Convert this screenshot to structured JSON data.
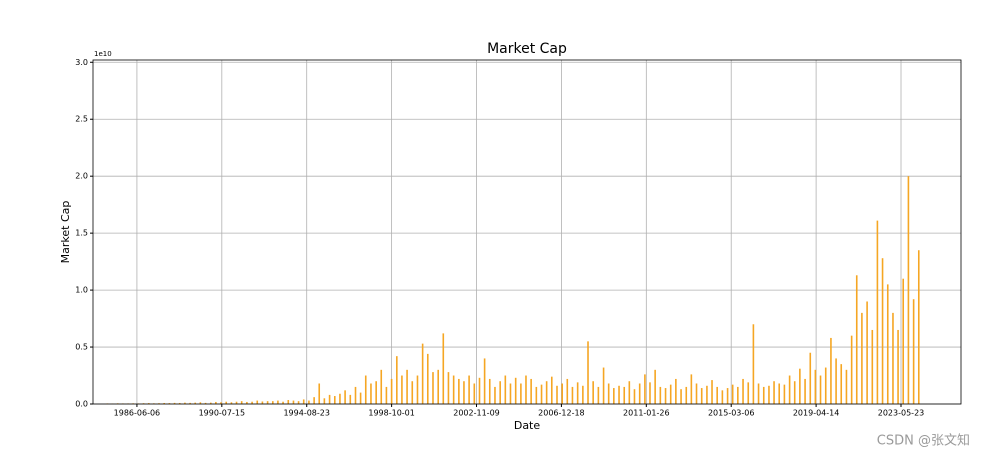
{
  "chart_data": {
    "type": "bar",
    "title": "Market Cap",
    "xlabel": "Date",
    "ylabel": "Market Cap",
    "y_offset_label": "1e10",
    "watermark": "CSDN @张文知",
    "color": "#f5a623",
    "grid": true,
    "xlim": [
      "1984-04-21",
      "2026-04-17"
    ],
    "ylim": [
      0,
      30200000000.0
    ],
    "xticks": [
      "1986-06-06",
      "1990-07-15",
      "1994-08-23",
      "1998-10-01",
      "2002-11-09",
      "2006-12-18",
      "2011-01-26",
      "2015-03-06",
      "2019-04-14",
      "2023-05-23"
    ],
    "yticks": [
      {
        "value": 0,
        "label": "0.0"
      },
      {
        "value": 5000000000.0,
        "label": "0.5"
      },
      {
        "value": 10000000000.0,
        "label": "1.0"
      },
      {
        "value": 15000000000.0,
        "label": "1.5"
      },
      {
        "value": 20000000000.0,
        "label": "2.0"
      },
      {
        "value": 25000000000.0,
        "label": "2.5"
      },
      {
        "value": 30000000000.0,
        "label": "3.0"
      }
    ],
    "x": [
      "1985-01-01",
      "1985-04-01",
      "1985-07-01",
      "1985-10-01",
      "1986-01-01",
      "1986-04-01",
      "1986-07-01",
      "1986-10-01",
      "1987-01-01",
      "1987-04-01",
      "1987-07-01",
      "1987-10-01",
      "1988-01-01",
      "1988-04-01",
      "1988-07-01",
      "1988-10-01",
      "1989-01-01",
      "1989-04-01",
      "1989-07-01",
      "1989-10-01",
      "1990-01-01",
      "1990-04-01",
      "1990-07-01",
      "1990-10-01",
      "1991-01-01",
      "1991-04-01",
      "1991-07-01",
      "1991-10-01",
      "1992-01-01",
      "1992-04-01",
      "1992-07-01",
      "1992-10-01",
      "1993-01-01",
      "1993-04-01",
      "1993-07-01",
      "1993-10-01",
      "1994-01-01",
      "1994-04-01",
      "1994-07-01",
      "1994-10-01",
      "1995-01-01",
      "1995-04-01",
      "1995-07-01",
      "1995-10-01",
      "1996-01-01",
      "1996-04-01",
      "1996-07-01",
      "1996-10-01",
      "1997-01-01",
      "1997-04-01",
      "1997-07-01",
      "1997-10-01",
      "1998-01-01",
      "1998-04-01",
      "1998-07-01",
      "1998-10-01",
      "1999-01-01",
      "1999-04-01",
      "1999-07-01",
      "1999-10-01",
      "2000-01-01",
      "2000-04-01",
      "2000-07-01",
      "2000-10-01",
      "2001-01-01",
      "2001-04-01",
      "2001-07-01",
      "2001-10-01",
      "2002-01-01",
      "2002-04-01",
      "2002-07-01",
      "2002-10-01",
      "2003-01-01",
      "2003-04-01",
      "2003-07-01",
      "2003-10-01",
      "2004-01-01",
      "2004-04-01",
      "2004-07-01",
      "2004-10-01",
      "2005-01-01",
      "2005-04-01",
      "2005-07-01",
      "2005-10-01",
      "2006-01-01",
      "2006-04-01",
      "2006-07-01",
      "2006-10-01",
      "2007-01-01",
      "2007-04-01",
      "2007-07-01",
      "2007-10-01",
      "2008-01-01",
      "2008-04-01",
      "2008-07-01",
      "2008-10-01",
      "2009-01-01",
      "2009-04-01",
      "2009-07-01",
      "2009-10-01",
      "2010-01-01",
      "2010-04-01",
      "2010-07-01",
      "2010-10-01",
      "2011-01-01",
      "2011-04-01",
      "2011-07-01",
      "2011-10-01",
      "2012-01-01",
      "2012-04-01",
      "2012-07-01",
      "2012-10-01",
      "2013-01-01",
      "2013-04-01",
      "2013-07-01",
      "2013-10-01",
      "2014-01-01",
      "2014-04-01",
      "2014-07-01",
      "2014-10-01",
      "2015-01-01",
      "2015-04-01",
      "2015-07-01",
      "2015-10-01",
      "2016-01-01",
      "2016-04-01",
      "2016-07-01",
      "2016-10-01",
      "2017-01-01",
      "2017-04-01",
      "2017-07-01",
      "2017-10-01",
      "2018-01-01",
      "2018-04-01",
      "2018-07-01",
      "2018-10-01",
      "2019-01-01",
      "2019-04-01",
      "2019-07-01",
      "2019-10-01",
      "2020-01-01",
      "2020-04-01",
      "2020-07-01",
      "2020-10-01",
      "2021-01-01",
      "2021-04-01",
      "2021-07-01",
      "2021-10-01",
      "2022-01-01",
      "2022-04-01",
      "2022-07-01",
      "2022-10-01",
      "2023-01-01",
      "2023-04-01",
      "2023-07-01",
      "2023-10-01",
      "2024-01-01",
      "2024-04-01"
    ],
    "values": [
      50000000.0,
      40000000.0,
      60000000.0,
      50000000.0,
      50000000.0,
      60000000.0,
      50000000.0,
      70000000.0,
      80000000.0,
      60000000.0,
      70000000.0,
      90000000.0,
      80000000.0,
      100000000.0,
      90000000.0,
      120000000.0,
      100000000.0,
      120000000.0,
      150000000.0,
      100000000.0,
      120000000.0,
      180000000.0,
      150000000.0,
      200000000.0,
      150000000.0,
      200000000.0,
      250000000.0,
      180000000.0,
      200000000.0,
      300000000.0,
      220000000.0,
      250000000.0,
      250000000.0,
      300000000.0,
      200000000.0,
      350000000.0,
      300000000.0,
      250000000.0,
      400000000.0,
      300000000.0,
      600000000.0,
      1800000000.0,
      500000000.0,
      800000000.0,
      700000000.0,
      900000000.0,
      1200000000.0,
      800000000.0,
      1500000000.0,
      1000000000.0,
      2500000000.0,
      1800000000.0,
      2000000000.0,
      3000000000.0,
      1500000000.0,
      2200000000.0,
      4200000000.0,
      2500000000.0,
      3000000000.0,
      2000000000.0,
      2500000000.0,
      5300000000.0,
      4400000000.0,
      2800000000.0,
      3000000000.0,
      6200000000.0,
      2800000000.0,
      2500000000.0,
      2200000000.0,
      2000000000.0,
      2500000000.0,
      1800000000.0,
      2300000000.0,
      4000000000.0,
      2200000000.0,
      1500000000.0,
      2000000000.0,
      2500000000.0,
      1800000000.0,
      2300000000.0,
      1800000000.0,
      2500000000.0,
      2200000000.0,
      1500000000.0,
      1700000000.0,
      2000000000.0,
      2400000000.0,
      1600000000.0,
      1800000000.0,
      2200000000.0,
      1500000000.0,
      1900000000.0,
      1600000000.0,
      5500000000.0,
      2000000000.0,
      1500000000.0,
      3200000000.0,
      1800000000.0,
      1400000000.0,
      1600000000.0,
      1500000000.0,
      2000000000.0,
      1300000000.0,
      1800000000.0,
      2600000000.0,
      1900000000.0,
      3000000000.0,
      1500000000.0,
      1400000000.0,
      1700000000.0,
      2200000000.0,
      1300000000.0,
      1500000000.0,
      2600000000.0,
      1800000000.0,
      1400000000.0,
      1600000000.0,
      2100000000.0,
      1500000000.0,
      1200000000.0,
      1400000000.0,
      1700000000.0,
      1500000000.0,
      2200000000.0,
      1900000000.0,
      7000000000.0,
      1800000000.0,
      1500000000.0,
      1600000000.0,
      2000000000.0,
      1800000000.0,
      1700000000.0,
      2500000000.0,
      2000000000.0,
      3100000000.0,
      2200000000.0,
      4500000000.0,
      3000000000.0,
      2500000000.0,
      3200000000.0,
      5800000000.0,
      4000000000.0,
      3500000000.0,
      3000000000.0,
      6000000000.0,
      11300000000.0,
      8000000000.0,
      9000000000.0,
      6500000000.0,
      16100000000.0,
      12800000000.0,
      10500000000.0,
      8000000000.0,
      6500000000.0,
      11000000000.0,
      20000000000.0,
      9200000000.0,
      13500000000.0
    ]
  }
}
